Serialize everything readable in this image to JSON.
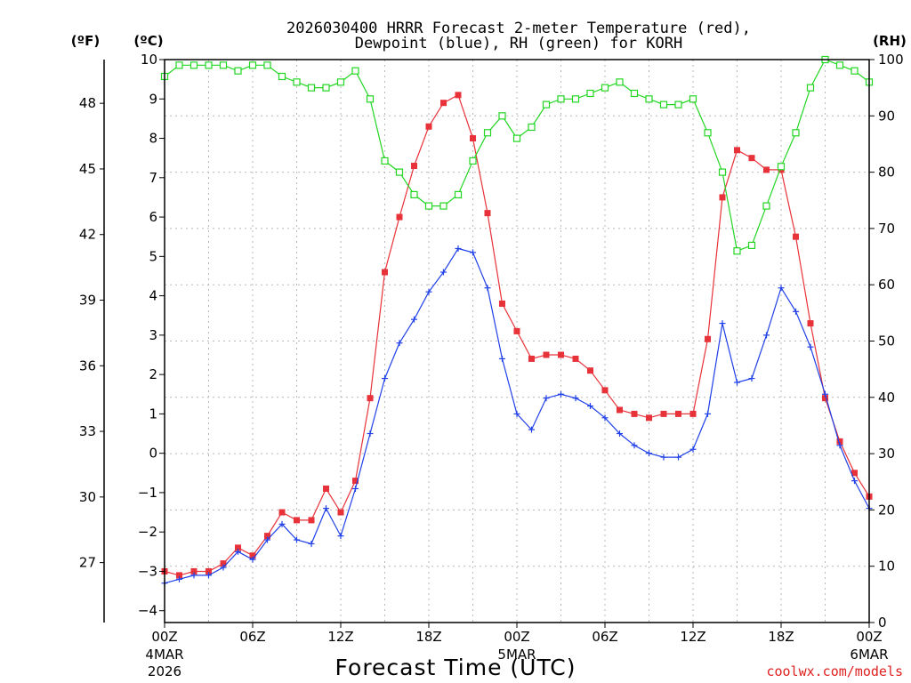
{
  "chart_data": {
    "type": "line",
    "title_line1": "2026030400 HRRR Forecast 2-meter Temperature (red),",
    "title_line2": "Dewpoint (blue), RH (green) for KORH",
    "xlabel": "Forecast Time (UTC)",
    "credit": "coolwx.com/models",
    "units": {
      "fahrenheit": "(ºF)",
      "celsius": "(ºC)",
      "rh": "(RH)"
    },
    "x_range_hours": [
      0,
      48
    ],
    "y_left_celsius": {
      "range": [
        -4.3,
        10
      ],
      "ticks": [
        -4,
        -3,
        -2,
        -1,
        0,
        1,
        2,
        3,
        4,
        5,
        6,
        7,
        8,
        9,
        10
      ]
    },
    "y_far_left_fahrenheit": {
      "ticks": [
        27,
        30,
        33,
        36,
        39,
        42,
        45,
        48
      ]
    },
    "y_right_rh": {
      "range": [
        0,
        100
      ],
      "ticks": [
        0,
        10,
        20,
        30,
        40,
        50,
        60,
        70,
        80,
        90,
        100
      ]
    },
    "x_ticks": [
      {
        "hour": 0,
        "label": "00Z",
        "sub1": "4MAR",
        "sub2": "2026"
      },
      {
        "hour": 6,
        "label": "06Z",
        "sub1": "",
        "sub2": ""
      },
      {
        "hour": 12,
        "label": "12Z",
        "sub1": "",
        "sub2": ""
      },
      {
        "hour": 18,
        "label": "18Z",
        "sub1": "",
        "sub2": ""
      },
      {
        "hour": 24,
        "label": "00Z",
        "sub1": "5MAR",
        "sub2": ""
      },
      {
        "hour": 30,
        "label": "06Z",
        "sub1": "",
        "sub2": ""
      },
      {
        "hour": 36,
        "label": "12Z",
        "sub1": "",
        "sub2": ""
      },
      {
        "hour": 42,
        "label": "18Z",
        "sub1": "",
        "sub2": ""
      },
      {
        "hour": 48,
        "label": "00Z",
        "sub1": "6MAR",
        "sub2": ""
      }
    ],
    "grid": true,
    "series": [
      {
        "key": "temperature",
        "color": "#e8323a",
        "marker": "filled-square",
        "axis": "celsius",
        "values": [
          -3.0,
          -3.1,
          -3.0,
          -3.0,
          -2.8,
          -2.4,
          -2.6,
          -2.1,
          -1.5,
          -1.7,
          -1.7,
          -0.9,
          -1.5,
          -0.7,
          1.4,
          4.6,
          6.0,
          7.3,
          8.3,
          8.9,
          9.1,
          8.0,
          6.1,
          3.8,
          3.1,
          2.4,
          2.5,
          2.5,
          2.4,
          2.1,
          1.6,
          1.1,
          1.0,
          0.9,
          1.0,
          1.0,
          1.0,
          2.9,
          6.5,
          7.7,
          7.5,
          7.2,
          7.2,
          5.5,
          3.3,
          1.4,
          0.3,
          -0.5,
          -1.1
        ]
      },
      {
        "key": "dewpoint",
        "color": "#2040e8",
        "marker": "plus",
        "axis": "celsius",
        "values": [
          -3.3,
          -3.2,
          -3.1,
          -3.1,
          -2.9,
          -2.5,
          -2.7,
          -2.2,
          -1.8,
          -2.2,
          -2.3,
          -1.4,
          -2.1,
          -0.9,
          0.5,
          1.9,
          2.8,
          3.4,
          4.1,
          4.6,
          5.2,
          5.1,
          4.2,
          2.4,
          1.0,
          0.6,
          1.4,
          1.5,
          1.4,
          1.2,
          0.9,
          0.5,
          0.2,
          0.0,
          -0.1,
          -0.1,
          0.1,
          1.0,
          3.3,
          1.8,
          1.9,
          3.0,
          4.2,
          3.6,
          2.7,
          1.5,
          0.2,
          -0.7,
          -1.4
        ]
      },
      {
        "key": "rh",
        "color": "#22d622",
        "marker": "open-square",
        "axis": "rh",
        "values": [
          97,
          99,
          99,
          99,
          99,
          98,
          99,
          99,
          97,
          96,
          95,
          95,
          96,
          98,
          93,
          82,
          80,
          76,
          74,
          74,
          76,
          82,
          87,
          90,
          86,
          88,
          92,
          93,
          93,
          94,
          95,
          96,
          94,
          93,
          92,
          92,
          93,
          87,
          80,
          66,
          67,
          74,
          81,
          87,
          95,
          100,
          99,
          98,
          96
        ]
      }
    ]
  }
}
